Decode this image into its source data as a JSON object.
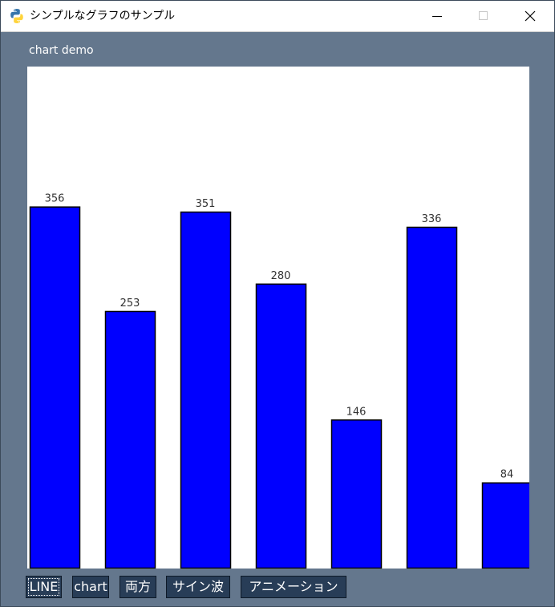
{
  "window": {
    "title": "シンプルなグラフのサンプル",
    "app_icon": "python-icon"
  },
  "content_label": "chart demo",
  "chart_data": {
    "type": "bar",
    "categories": [
      "",
      "",
      "",
      "",
      "",
      "",
      ""
    ],
    "values": [
      356,
      253,
      351,
      280,
      146,
      336,
      84
    ],
    "value_labels": [
      "356",
      "253",
      "351",
      "280",
      "146",
      "336",
      "84"
    ],
    "bar_color": "#0000ff",
    "bar_edge_color": "#000000",
    "background": "#ffffff",
    "title": "",
    "xlabel": "",
    "ylabel": "",
    "ylim": [
      0,
      500
    ],
    "grid": false
  },
  "buttons": [
    {
      "label": "LINE",
      "focused": true
    },
    {
      "label": "chart",
      "focused": false
    },
    {
      "label": "両方",
      "focused": false
    },
    {
      "label": "サイン波",
      "focused": false
    },
    {
      "label": "アニメーション",
      "focused": false
    }
  ],
  "colors": {
    "window_bg": "#64778d",
    "button_bg": "#283d57",
    "button_text": "#ffffff"
  }
}
